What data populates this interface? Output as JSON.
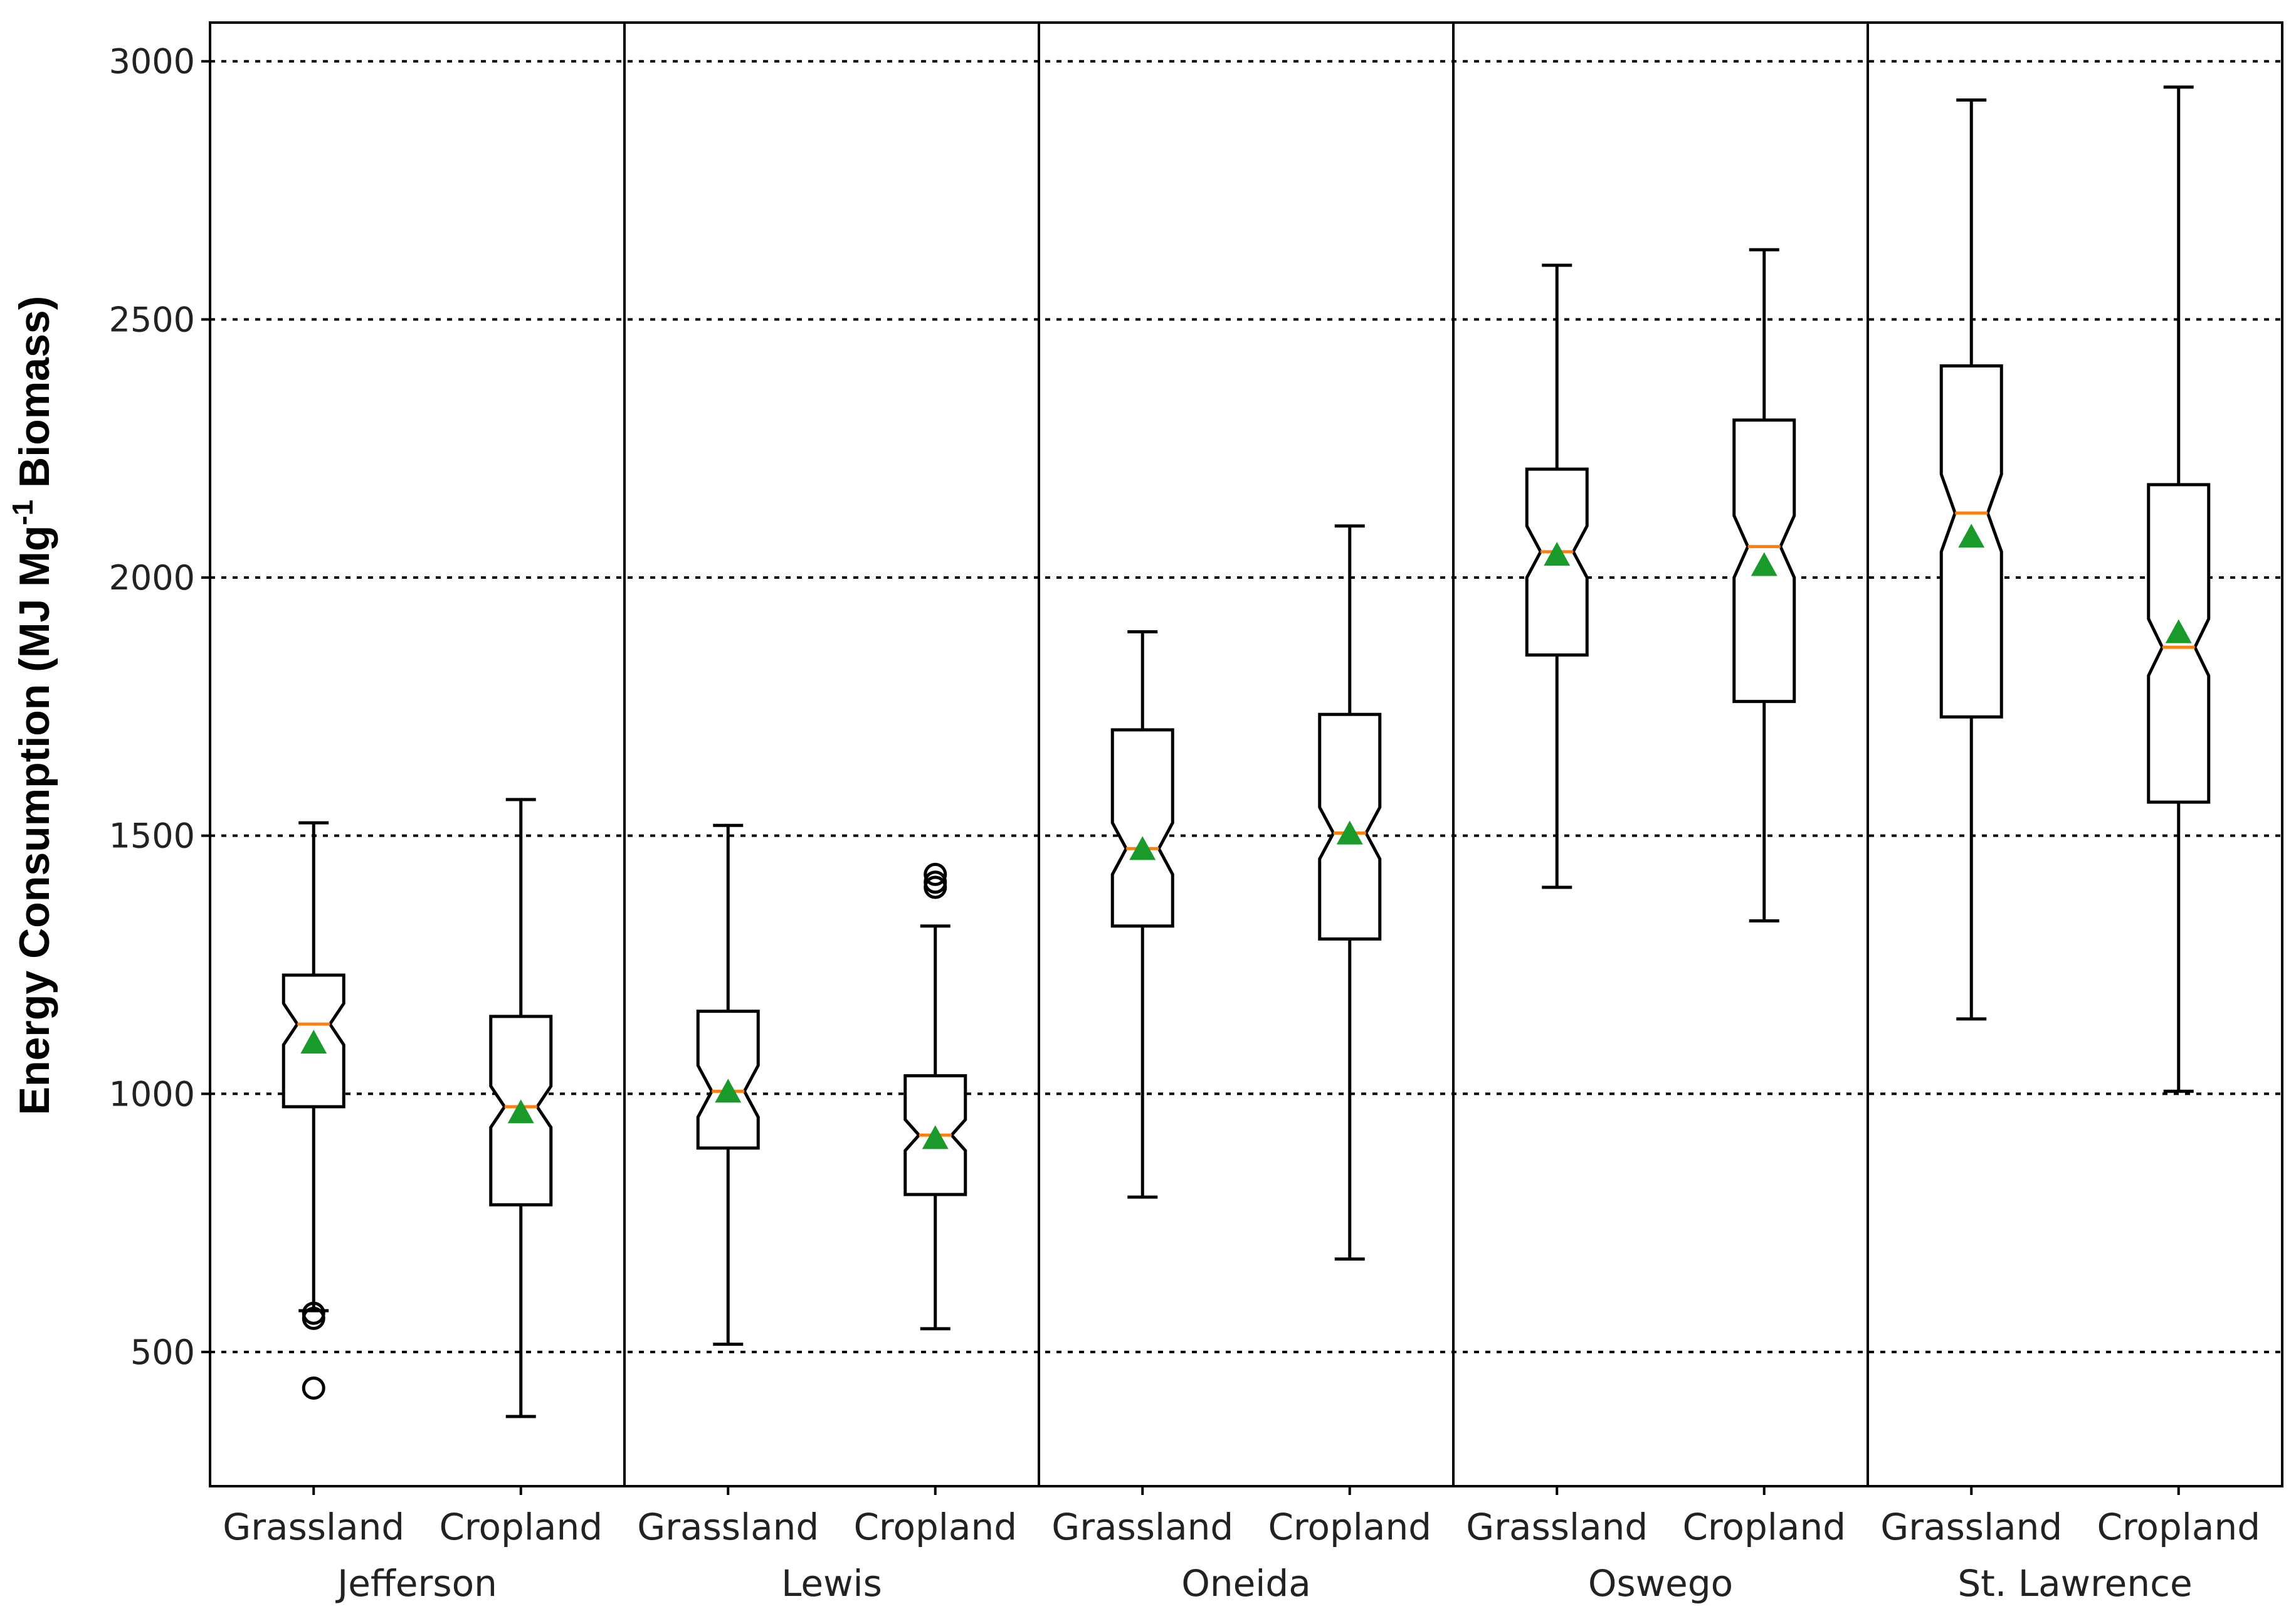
{
  "chart_data": {
    "type": "boxplot",
    "title": "",
    "xlabel": "",
    "ylabel": "Energy Consumption  (MJ Mg-1 Biomass)",
    "ylabel_parts": {
      "main": "Energy Consumption  (MJ Mg",
      "superscript": "-1",
      "tail": " Biomass)"
    },
    "ylim": [
      240,
      3075
    ],
    "yticks": [
      500,
      1000,
      1500,
      2000,
      2500,
      3000
    ],
    "grid": "horizontal dotted",
    "groups": [
      "Jefferson",
      "Lewis",
      "Oneida",
      "Oswego",
      "St. Lawrence"
    ],
    "categories": [
      "Grassland",
      "Cropland"
    ],
    "boxes": [
      {
        "group": "Jefferson",
        "category": "Grassland",
        "whisker_low": 580,
        "q1": 975,
        "median": 1135,
        "q3": 1230,
        "whisker_high": 1525,
        "mean": 1095,
        "notch_low": 1095,
        "notch_high": 1175,
        "outliers": [
          430,
          565,
          575
        ]
      },
      {
        "group": "Jefferson",
        "category": "Cropland",
        "whisker_low": 375,
        "q1": 785,
        "median": 975,
        "q3": 1150,
        "whisker_high": 1570,
        "mean": 960,
        "notch_low": 935,
        "notch_high": 1015,
        "outliers": []
      },
      {
        "group": "Lewis",
        "category": "Grassland",
        "whisker_low": 515,
        "q1": 895,
        "median": 1005,
        "q3": 1160,
        "whisker_high": 1520,
        "mean": 1000,
        "notch_low": 955,
        "notch_high": 1055,
        "outliers": []
      },
      {
        "group": "Lewis",
        "category": "Cropland",
        "whisker_low": 545,
        "q1": 805,
        "median": 920,
        "q3": 1035,
        "whisker_high": 1325,
        "mean": 910,
        "notch_low": 890,
        "notch_high": 950,
        "outliers": [
          1400,
          1410,
          1425
        ]
      },
      {
        "group": "Oneida",
        "category": "Grassland",
        "whisker_low": 800,
        "q1": 1325,
        "median": 1475,
        "q3": 1705,
        "whisker_high": 1895,
        "mean": 1470,
        "notch_low": 1425,
        "notch_high": 1525,
        "outliers": []
      },
      {
        "group": "Oneida",
        "category": "Cropland",
        "whisker_low": 680,
        "q1": 1300,
        "median": 1505,
        "q3": 1735,
        "whisker_high": 2100,
        "mean": 1500,
        "notch_low": 1455,
        "notch_high": 1555,
        "outliers": []
      },
      {
        "group": "Oswego",
        "category": "Grassland",
        "whisker_low": 1400,
        "q1": 1850,
        "median": 2050,
        "q3": 2210,
        "whisker_high": 2605,
        "mean": 2040,
        "notch_low": 2000,
        "notch_high": 2100,
        "outliers": []
      },
      {
        "group": "Oswego",
        "category": "Cropland",
        "whisker_low": 1335,
        "q1": 1760,
        "median": 2060,
        "q3": 2305,
        "whisker_high": 2635,
        "mean": 2020,
        "notch_low": 2000,
        "notch_high": 2120,
        "outliers": []
      },
      {
        "group": "St. Lawrence",
        "category": "Grassland",
        "whisker_low": 1145,
        "q1": 1730,
        "median": 2125,
        "q3": 2410,
        "whisker_high": 2925,
        "mean": 2075,
        "notch_low": 2050,
        "notch_high": 2200,
        "outliers": []
      },
      {
        "group": "St. Lawrence",
        "category": "Cropland",
        "whisker_low": 1005,
        "q1": 1565,
        "median": 1865,
        "q3": 2180,
        "whisker_high": 2950,
        "mean": 1890,
        "notch_low": 1810,
        "notch_high": 1920,
        "outliers": []
      }
    ],
    "colors": {
      "box": "#000000",
      "median": "#ff7f0e",
      "mean": "#1a9a2a",
      "grid": "#000000"
    },
    "mean_marker": "triangle",
    "outlier_marker": "circle"
  }
}
